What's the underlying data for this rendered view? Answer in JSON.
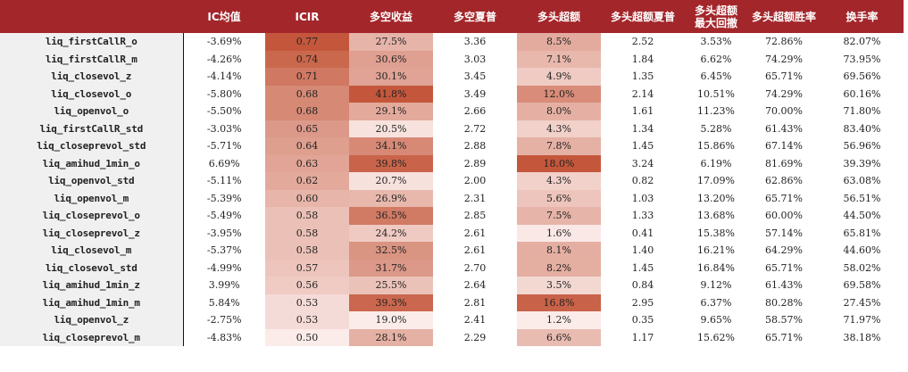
{
  "colors": {
    "header_bg": "#a3262b",
    "heat_max": "#c4573b",
    "heat_min": "#fbecea",
    "name_col_bg": "#f0f0f0"
  },
  "table": {
    "headers": [
      "",
      "IC均值",
      "ICIR",
      "多空收益",
      "多空夏普",
      "多头超额",
      "多头超额夏普",
      "多头超额\n最大回撤",
      "多头超额胜率",
      "换手率"
    ],
    "heat_columns": [
      2,
      3,
      5
    ],
    "rows": [
      [
        "liq_firstCallR_o",
        "-3.69%",
        "0.77",
        "27.5%",
        "3.36",
        "8.5%",
        "2.52",
        "3.53%",
        "72.86%",
        "82.07%"
      ],
      [
        "liq_firstCallR_m",
        "-4.26%",
        "0.74",
        "30.6%",
        "3.03",
        "7.1%",
        "1.84",
        "6.62%",
        "74.29%",
        "73.95%"
      ],
      [
        "liq_closevol_z",
        "-4.14%",
        "0.71",
        "30.1%",
        "3.45",
        "4.9%",
        "1.35",
        "6.45%",
        "65.71%",
        "69.56%"
      ],
      [
        "liq_closevol_o",
        "-5.80%",
        "0.68",
        "41.8%",
        "3.49",
        "12.0%",
        "2.14",
        "10.51%",
        "74.29%",
        "60.16%"
      ],
      [
        "liq_openvol_o",
        "-5.50%",
        "0.68",
        "29.1%",
        "2.66",
        "8.0%",
        "1.61",
        "11.23%",
        "70.00%",
        "71.80%"
      ],
      [
        "liq_firstCallR_std",
        "-3.03%",
        "0.65",
        "20.5%",
        "2.72",
        "4.3%",
        "1.34",
        "5.28%",
        "61.43%",
        "83.40%"
      ],
      [
        "liq_closeprevol_std",
        "-5.71%",
        "0.64",
        "34.1%",
        "2.88",
        "7.8%",
        "1.45",
        "15.86%",
        "67.14%",
        "56.96%"
      ],
      [
        "liq_amihud_1min_o",
        "6.69%",
        "0.63",
        "39.8%",
        "2.89",
        "18.0%",
        "3.24",
        "6.19%",
        "81.69%",
        "39.39%"
      ],
      [
        "liq_openvol_std",
        "-5.11%",
        "0.62",
        "20.7%",
        "2.00",
        "4.3%",
        "0.82",
        "17.09%",
        "62.86%",
        "63.08%"
      ],
      [
        "liq_openvol_m",
        "-5.39%",
        "0.60",
        "26.9%",
        "2.31",
        "5.6%",
        "1.03",
        "13.20%",
        "65.71%",
        "56.51%"
      ],
      [
        "liq_closeprevol_o",
        "-5.49%",
        "0.58",
        "36.5%",
        "2.85",
        "7.5%",
        "1.33",
        "13.68%",
        "60.00%",
        "44.50%"
      ],
      [
        "liq_closeprevol_z",
        "-3.95%",
        "0.58",
        "24.2%",
        "2.61",
        "1.6%",
        "0.41",
        "15.38%",
        "57.14%",
        "65.81%"
      ],
      [
        "liq_closevol_m",
        "-5.37%",
        "0.58",
        "32.5%",
        "2.61",
        "8.1%",
        "1.40",
        "16.21%",
        "64.29%",
        "44.60%"
      ],
      [
        "liq_closevol_std",
        "-4.99%",
        "0.57",
        "31.7%",
        "2.70",
        "8.2%",
        "1.45",
        "16.84%",
        "65.71%",
        "58.02%"
      ],
      [
        "liq_amihud_1min_z",
        "3.99%",
        "0.56",
        "25.5%",
        "2.64",
        "3.5%",
        "0.84",
        "9.12%",
        "61.43%",
        "69.58%"
      ],
      [
        "liq_amihud_1min_m",
        "5.84%",
        "0.53",
        "39.3%",
        "2.81",
        "16.8%",
        "2.95",
        "6.37%",
        "80.28%",
        "27.45%"
      ],
      [
        "liq_openvol_z",
        "-2.75%",
        "0.53",
        "19.0%",
        "2.41",
        "1.2%",
        "0.35",
        "9.65%",
        "58.57%",
        "71.97%"
      ],
      [
        "liq_closeprevol_m",
        "-4.83%",
        "0.50",
        "28.1%",
        "2.29",
        "6.6%",
        "1.17",
        "15.62%",
        "65.71%",
        "38.18%"
      ]
    ]
  }
}
